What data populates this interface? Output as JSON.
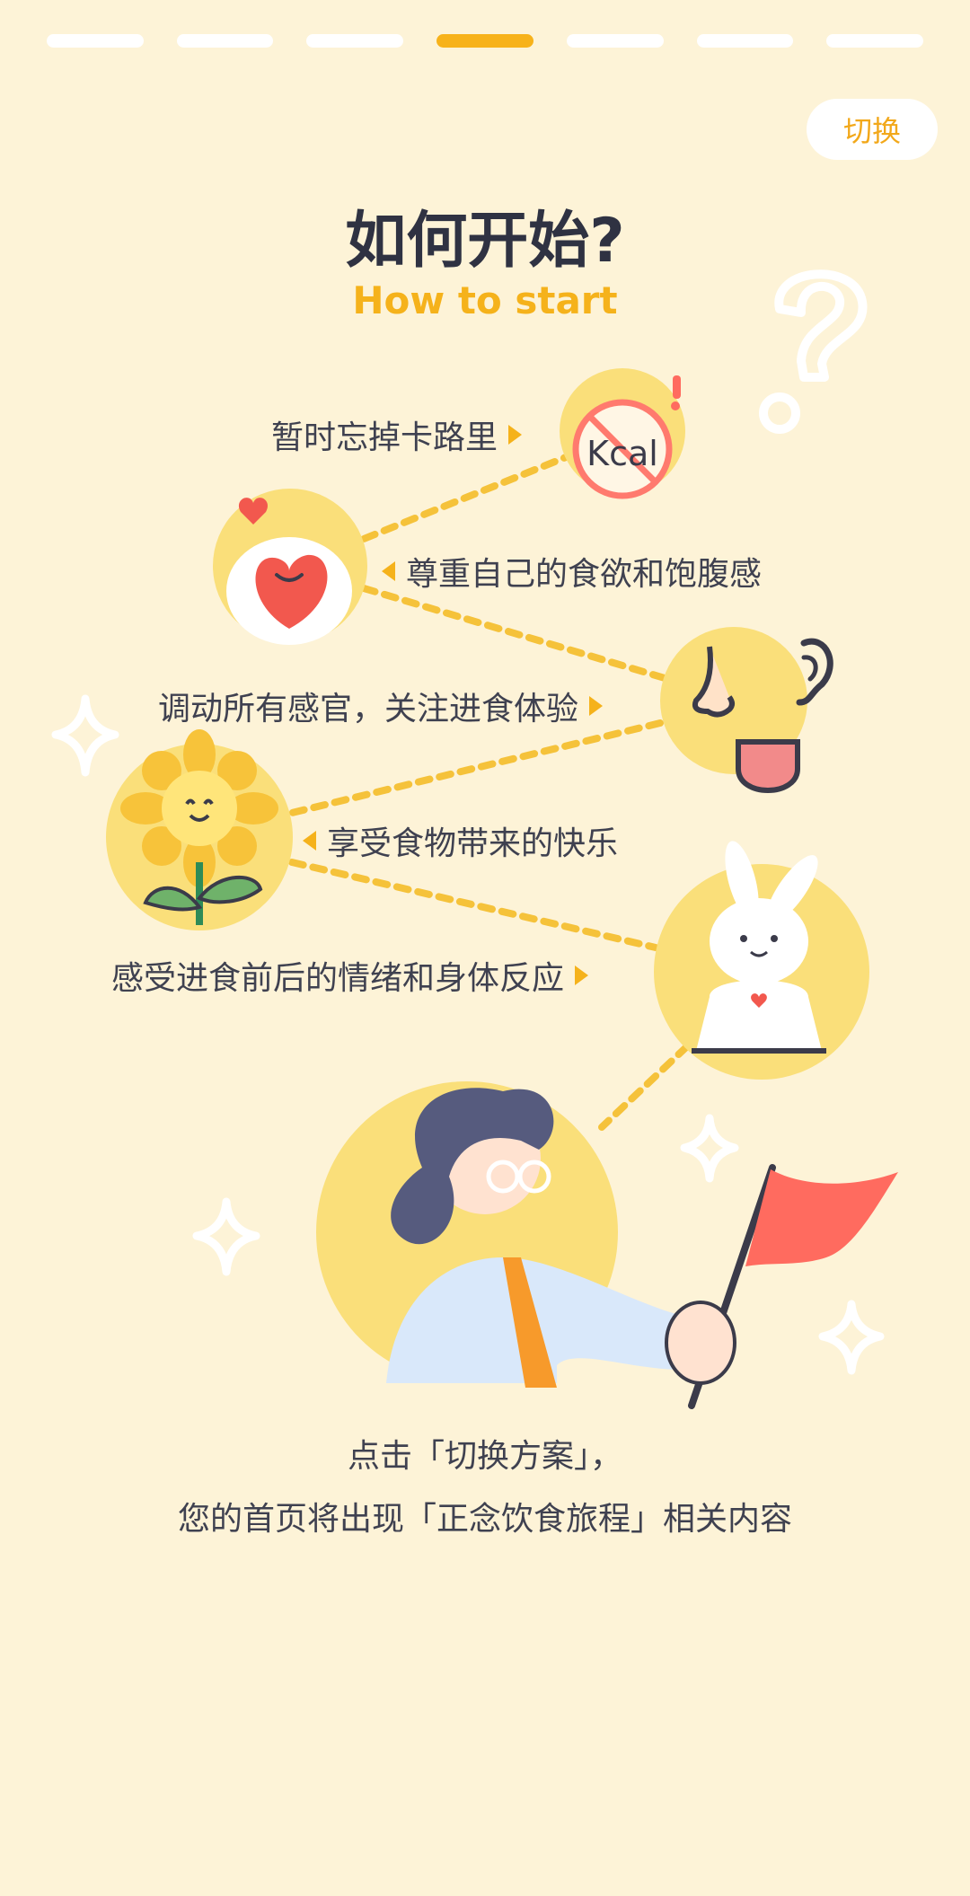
{
  "progress": {
    "total": 7,
    "current": 4
  },
  "header": {
    "switch_label": "切换"
  },
  "title": "如何开始?",
  "subtitle": "How to start",
  "steps": [
    {
      "label": "暂时忘掉卡路里"
    },
    {
      "label": "尊重自己的食欲和饱腹感"
    },
    {
      "label": "调动所有感官，关注进食体验"
    },
    {
      "label": "享受食物带来的快乐"
    },
    {
      "label": "感受进食前后的情绪和身体反应"
    }
  ],
  "kcal_text": "Kcal",
  "footer": {
    "line1": "点击「切换方案」，",
    "line2": "您的首页将出现「正念饮食旅程」相关内容"
  },
  "colors": {
    "background": "#FDF3D7",
    "accent": "#F5B21B",
    "circle": "#FADF7A",
    "flag": "#FF6B5F"
  }
}
